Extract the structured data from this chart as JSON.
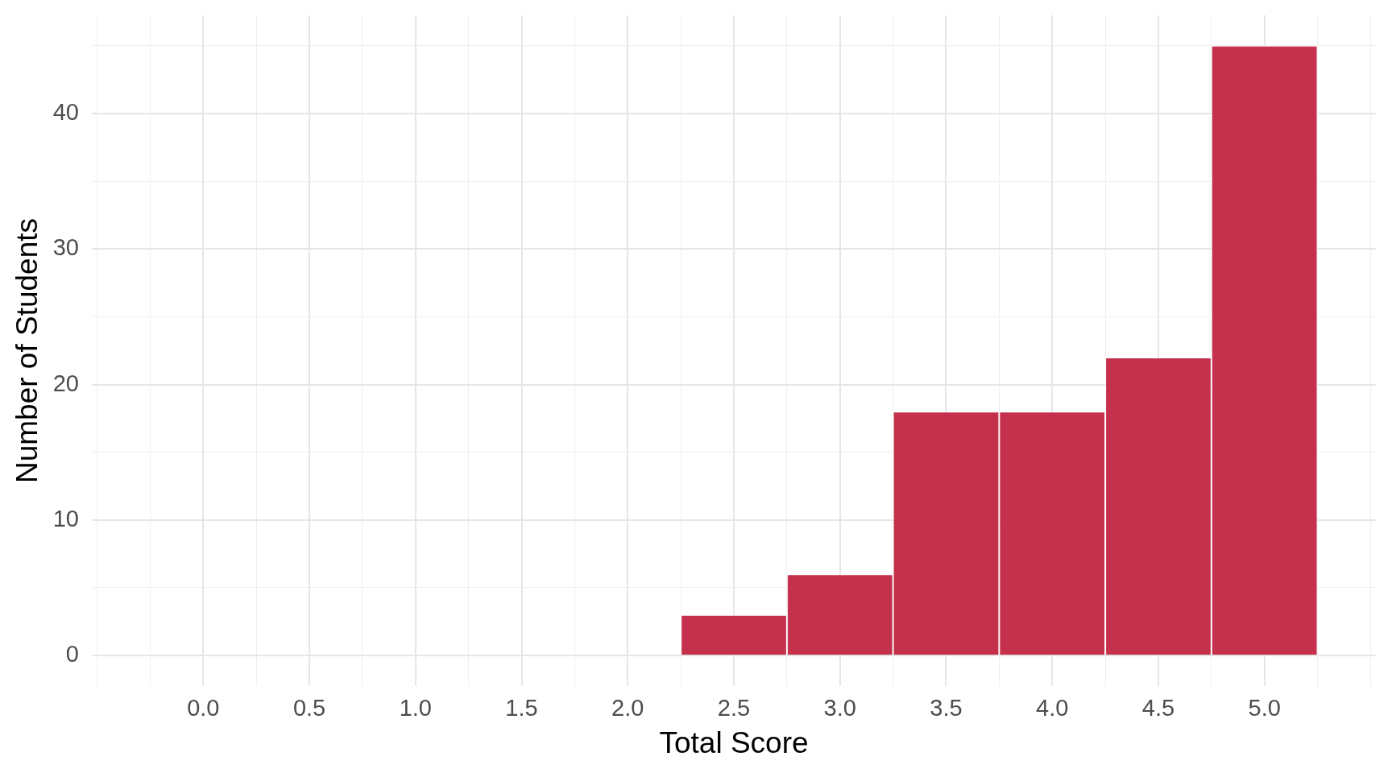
{
  "chart_data": {
    "type": "histogram",
    "xlabel": "Total Score",
    "ylabel": "Number of Students",
    "bins": [
      -0.25,
      0.25,
      0.75,
      1.25,
      1.75,
      2.25,
      2.75,
      3.25,
      3.75,
      4.25,
      4.75,
      5.25
    ],
    "values": [
      0,
      0,
      0,
      0,
      0,
      3,
      6,
      18,
      18,
      22,
      45
    ],
    "color": "#c5304c",
    "xlim": [
      -0.525,
      5.525
    ],
    "xticks": [
      {
        "value": -0.5,
        "label": null
      },
      {
        "value": -0.25,
        "label": null
      },
      {
        "value": 0,
        "label": "0.0"
      },
      {
        "value": 0.25,
        "label": null
      },
      {
        "value": 0.5,
        "label": "0.5"
      },
      {
        "value": 0.75,
        "label": null
      },
      {
        "value": 1,
        "label": "1.0"
      },
      {
        "value": 1.25,
        "label": null
      },
      {
        "value": 1.5,
        "label": "1.5"
      },
      {
        "value": 1.75,
        "label": null
      },
      {
        "value": 2,
        "label": "2.0"
      },
      {
        "value": 2.25,
        "label": null
      },
      {
        "value": 2.5,
        "label": "2.5"
      },
      {
        "value": 2.75,
        "label": null
      },
      {
        "value": 3,
        "label": "3.0"
      },
      {
        "value": 3.25,
        "label": null
      },
      {
        "value": 3.5,
        "label": "3.5"
      },
      {
        "value": 3.75,
        "label": null
      },
      {
        "value": 4,
        "label": "4.0"
      },
      {
        "value": 4.25,
        "label": null
      },
      {
        "value": 4.5,
        "label": "4.5"
      },
      {
        "value": 4.75,
        "label": null
      },
      {
        "value": 5,
        "label": "5.0"
      },
      {
        "value": 5.25,
        "label": null
      },
      {
        "value": 5.5,
        "label": null
      }
    ],
    "ylim": [
      -2.25,
      47.25
    ],
    "yticks": [
      0,
      {
        "value": 5,
        "label": null
      },
      10,
      {
        "value": 15,
        "label": null
      },
      20,
      {
        "value": 25,
        "label": null
      },
      30,
      {
        "value": 35,
        "label": null
      },
      40,
      {
        "value": 45,
        "label": null
      }
    ],
    "grid": true,
    "legend": false
  }
}
